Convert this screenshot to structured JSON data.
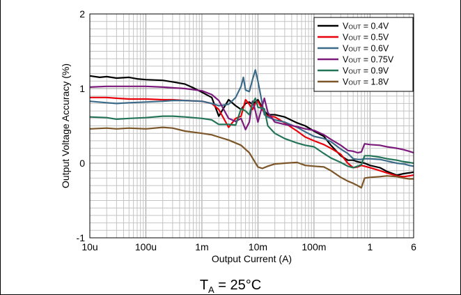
{
  "chart_data": {
    "type": "line",
    "xlabel": "Output Current (A)",
    "ylabel": "Output Voltage Accuracy (%)",
    "xscale": "log",
    "xlim": [
      1e-05,
      6
    ],
    "ylim": [
      -1,
      2
    ],
    "yticks": [
      -1,
      0,
      1,
      2
    ],
    "ytick_labels": [
      "-1",
      "0",
      "1",
      "2"
    ],
    "xticks": [
      1e-05,
      0.0001,
      0.001,
      0.01,
      0.1,
      1,
      6
    ],
    "xtick_labels": [
      "10u",
      "100u",
      "1m",
      "10m",
      "100m",
      "1",
      "6"
    ],
    "grid": true,
    "legend_position": "top-right",
    "legend_prefix": "V",
    "legend_subscript": "OUT",
    "series": [
      {
        "name": "= 0.4V",
        "color": "#000000",
        "x": [
          1e-05,
          1.5e-05,
          2e-05,
          3e-05,
          5e-05,
          7e-05,
          0.0001,
          0.0002,
          0.0003,
          0.0005,
          0.0007,
          0.001,
          0.0015,
          0.002,
          0.003,
          0.004,
          0.005,
          0.006,
          0.007,
          0.008,
          0.01,
          0.013,
          0.015,
          0.02,
          0.03,
          0.05,
          0.07,
          0.1,
          0.15,
          0.2,
          0.3,
          0.4,
          0.5,
          0.6,
          0.7,
          0.8,
          1,
          1.5,
          2,
          3,
          4,
          5,
          6
        ],
        "y": [
          1.17,
          1.15,
          1.16,
          1.14,
          1.15,
          1.13,
          1.12,
          1.11,
          1.09,
          1.06,
          1.01,
          0.95,
          0.88,
          0.63,
          0.85,
          0.77,
          0.72,
          0.8,
          0.82,
          0.79,
          0.85,
          0.7,
          0.65,
          0.65,
          0.62,
          0.54,
          0.5,
          0.43,
          0.36,
          0.24,
          0.1,
          0.04,
          0.04,
          0.02,
          0.01,
          0.0,
          -0.03,
          -0.06,
          -0.11,
          -0.16,
          -0.14,
          -0.13,
          -0.12
        ]
      },
      {
        "name": "= 0.5V",
        "color": "#e8000b",
        "x": [
          1e-05,
          2e-05,
          3e-05,
          5e-05,
          0.0001,
          0.0002,
          0.0003,
          0.0005,
          0.001,
          0.0015,
          0.002,
          0.003,
          0.004,
          0.005,
          0.006,
          0.007,
          0.008,
          0.009,
          0.01,
          0.013,
          0.015,
          0.02,
          0.03,
          0.05,
          0.07,
          0.1,
          0.15,
          0.2,
          0.3,
          0.4,
          0.5,
          0.6,
          0.7,
          0.8,
          1,
          1.5,
          2,
          3,
          4,
          5,
          6
        ],
        "y": [
          0.88,
          0.88,
          0.87,
          0.86,
          0.86,
          0.85,
          0.85,
          0.84,
          0.83,
          0.8,
          0.72,
          0.48,
          0.6,
          0.63,
          0.85,
          0.79,
          0.72,
          0.8,
          0.83,
          0.67,
          0.63,
          0.62,
          0.54,
          0.43,
          0.35,
          0.3,
          0.25,
          0.2,
          0.12,
          0.0,
          -0.06,
          -0.05,
          -0.03,
          -0.04,
          -0.06,
          -0.1,
          -0.13,
          -0.17,
          -0.18,
          -0.17,
          -0.16
        ]
      },
      {
        "name": "= 0.6V",
        "color": "#3c6b89",
        "x": [
          1e-05,
          2e-05,
          3e-05,
          5e-05,
          0.0001,
          0.0002,
          0.0003,
          0.0005,
          0.001,
          0.0015,
          0.002,
          0.003,
          0.004,
          0.005,
          0.0055,
          0.006,
          0.007,
          0.008,
          0.009,
          0.01,
          0.013,
          0.015,
          0.02,
          0.03,
          0.05,
          0.07,
          0.1,
          0.15,
          0.2,
          0.3,
          0.4,
          0.5,
          0.6,
          0.7,
          0.8,
          1,
          1.5,
          2,
          3,
          4,
          5,
          6
        ],
        "y": [
          0.83,
          0.81,
          0.8,
          0.81,
          0.82,
          0.83,
          0.84,
          0.84,
          0.83,
          0.8,
          0.77,
          0.79,
          0.88,
          1.03,
          1.15,
          0.98,
          0.96,
          1.12,
          1.25,
          1.1,
          0.65,
          0.62,
          0.58,
          0.55,
          0.48,
          0.42,
          0.36,
          0.33,
          0.29,
          0.19,
          0.13,
          0.06,
          0.05,
          0.05,
          0.06,
          0.06,
          0.05,
          0.03,
          0.0,
          -0.01,
          -0.03,
          -0.04
        ]
      },
      {
        "name": "= 0.75V",
        "color": "#7b1a7b",
        "x": [
          1e-05,
          2e-05,
          3e-05,
          5e-05,
          0.0001,
          0.0002,
          0.0003,
          0.0005,
          0.001,
          0.0015,
          0.002,
          0.003,
          0.004,
          0.005,
          0.006,
          0.007,
          0.008,
          0.009,
          0.01,
          0.013,
          0.015,
          0.02,
          0.03,
          0.05,
          0.07,
          0.1,
          0.15,
          0.2,
          0.3,
          0.4,
          0.5,
          0.6,
          0.7,
          0.8,
          1,
          1.5,
          2,
          3,
          4,
          5,
          6
        ],
        "y": [
          1.02,
          1.03,
          1.03,
          1.03,
          1.03,
          1.02,
          1.01,
          1.0,
          0.97,
          0.92,
          0.84,
          0.6,
          0.56,
          0.6,
          0.45,
          0.55,
          0.83,
          0.7,
          0.55,
          0.87,
          0.68,
          0.55,
          0.52,
          0.49,
          0.46,
          0.44,
          0.38,
          0.32,
          0.24,
          0.17,
          0.16,
          0.14,
          0.15,
          0.26,
          0.25,
          0.24,
          0.22,
          0.2,
          0.18,
          0.16,
          0.14
        ]
      },
      {
        "name": "= 0.9V",
        "color": "#247557",
        "x": [
          1e-05,
          2e-05,
          3e-05,
          5e-05,
          0.0001,
          0.0002,
          0.0003,
          0.0005,
          0.001,
          0.0015,
          0.002,
          0.003,
          0.004,
          0.005,
          0.006,
          0.007,
          0.008,
          0.009,
          0.01,
          0.013,
          0.015,
          0.02,
          0.03,
          0.05,
          0.07,
          0.1,
          0.15,
          0.2,
          0.3,
          0.4,
          0.5,
          0.6,
          0.7,
          0.8,
          1,
          1.5,
          2,
          3,
          4,
          5,
          6
        ],
        "y": [
          0.62,
          0.61,
          0.59,
          0.6,
          0.61,
          0.63,
          0.63,
          0.62,
          0.6,
          0.58,
          0.52,
          0.52,
          0.51,
          0.73,
          0.7,
          0.65,
          0.8,
          0.87,
          0.75,
          0.73,
          0.5,
          0.4,
          0.33,
          0.27,
          0.24,
          0.22,
          0.13,
          0.07,
          0.01,
          -0.04,
          -0.06,
          -0.04,
          -0.02,
          0.1,
          0.1,
          0.08,
          0.06,
          0.04,
          0.02,
          0.01,
          0.0
        ]
      },
      {
        "name": "= 1.8V",
        "color": "#7c5628",
        "x": [
          1e-05,
          2e-05,
          3e-05,
          5e-05,
          0.0001,
          0.0002,
          0.0003,
          0.0005,
          0.001,
          0.0015,
          0.002,
          0.003,
          0.005,
          0.007,
          0.01,
          0.012,
          0.015,
          0.02,
          0.03,
          0.05,
          0.07,
          0.1,
          0.15,
          0.2,
          0.3,
          0.4,
          0.5,
          0.6,
          0.7,
          0.8,
          1,
          1.5,
          2,
          3,
          4,
          5,
          6
        ],
        "y": [
          0.46,
          0.47,
          0.46,
          0.47,
          0.46,
          0.48,
          0.47,
          0.43,
          0.4,
          0.38,
          0.35,
          0.31,
          0.24,
          0.14,
          -0.05,
          -0.07,
          -0.04,
          -0.01,
          0.0,
          0.01,
          -0.03,
          -0.04,
          -0.05,
          -0.1,
          -0.19,
          -0.24,
          -0.27,
          -0.3,
          -0.33,
          -0.2,
          -0.19,
          -0.18,
          -0.17,
          -0.18,
          -0.2,
          -0.21,
          -0.21
        ]
      }
    ]
  },
  "caption": {
    "main": "T",
    "sub": "A",
    "rest": " = 25°C"
  }
}
